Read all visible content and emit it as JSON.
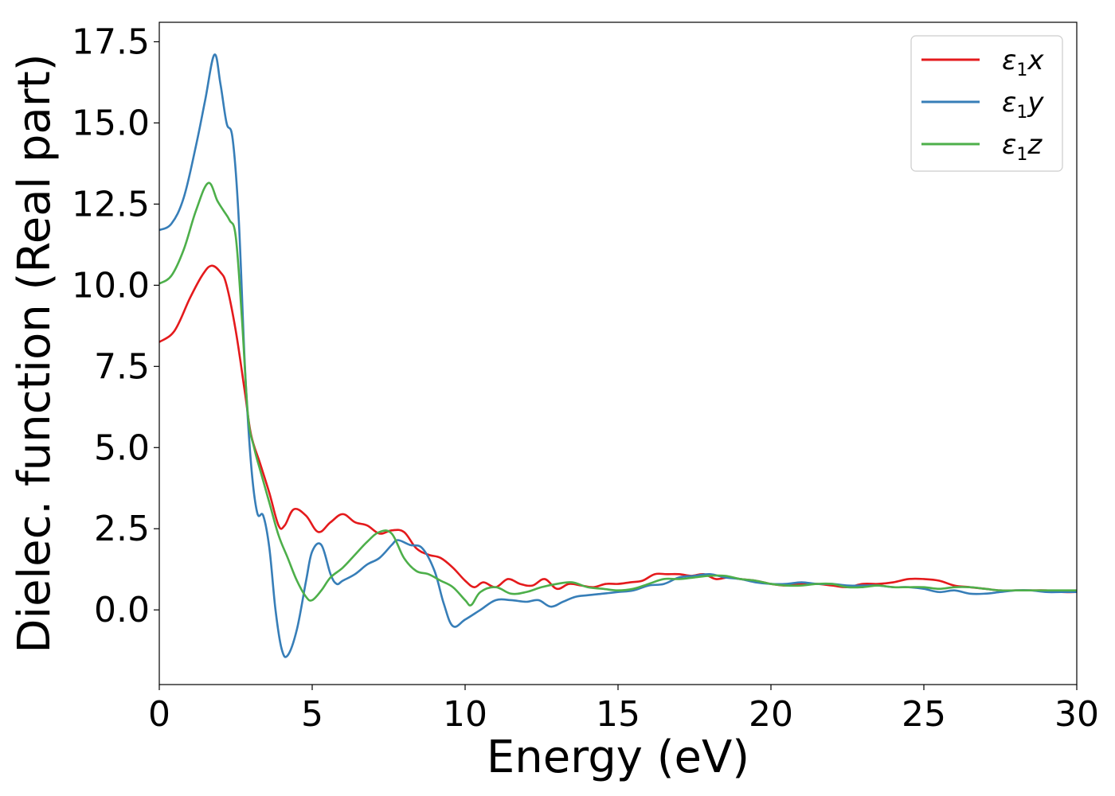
{
  "chart_data": {
    "type": "line",
    "xlabel": "Energy (eV)",
    "ylabel": "Dielec. function (Real part)",
    "xlim": [
      0,
      30
    ],
    "ylim": [
      -2.3,
      18.1
    ],
    "xticks": [
      0,
      5,
      10,
      15,
      20,
      25,
      30
    ],
    "xtick_labels": [
      "0",
      "5",
      "10",
      "15",
      "20",
      "25",
      "30"
    ],
    "yticks": [
      0.0,
      2.5,
      5.0,
      7.5,
      10.0,
      12.5,
      15.0,
      17.5
    ],
    "ytick_labels": [
      "0.0",
      "2.5",
      "5.0",
      "7.5",
      "10.0",
      "12.5",
      "15.0",
      "17.5"
    ],
    "grid": false,
    "legend_position": "top-right",
    "series": [
      {
        "name": "ε1x",
        "legend_main": "ε",
        "legend_sub": "1",
        "legend_var": "x",
        "color": "#e41a1c",
        "x": [
          0,
          0.5,
          1.0,
          1.4,
          1.7,
          2.0,
          2.2,
          2.5,
          2.8,
          3.0,
          3.3,
          3.6,
          3.9,
          4.1,
          4.4,
          4.8,
          5.2,
          5.6,
          6.0,
          6.4,
          6.8,
          7.2,
          7.6,
          8.0,
          8.4,
          8.8,
          9.2,
          9.6,
          10.0,
          10.3,
          10.6,
          11.0,
          11.4,
          11.8,
          12.2,
          12.6,
          13.0,
          13.4,
          13.8,
          14.2,
          14.6,
          15.0,
          15.4,
          15.8,
          16.2,
          16.6,
          17.0,
          17.4,
          17.8,
          18.2,
          18.6,
          19.0,
          19.5,
          20.0,
          20.5,
          21.0,
          21.5,
          22.0,
          22.5,
          23.0,
          23.5,
          24.0,
          24.5,
          25.0,
          25.5,
          26.0,
          26.5,
          27.0,
          27.5,
          28.0,
          28.5,
          29.0,
          29.5,
          30.0
        ],
        "y": [
          8.25,
          8.6,
          9.6,
          10.3,
          10.6,
          10.4,
          10.0,
          8.6,
          6.7,
          5.4,
          4.5,
          3.6,
          2.6,
          2.6,
          3.1,
          2.9,
          2.4,
          2.7,
          2.95,
          2.7,
          2.6,
          2.35,
          2.45,
          2.4,
          1.9,
          1.7,
          1.6,
          1.3,
          0.9,
          0.7,
          0.85,
          0.7,
          0.95,
          0.8,
          0.75,
          0.95,
          0.65,
          0.8,
          0.75,
          0.7,
          0.8,
          0.8,
          0.85,
          0.9,
          1.1,
          1.1,
          1.1,
          1.05,
          1.1,
          0.95,
          1.0,
          0.95,
          0.9,
          0.8,
          0.75,
          0.8,
          0.8,
          0.75,
          0.7,
          0.8,
          0.8,
          0.85,
          0.95,
          0.95,
          0.9,
          0.75,
          0.7,
          0.65,
          0.6,
          0.6,
          0.6,
          0.6,
          0.55,
          0.55
        ]
      },
      {
        "name": "ε1y",
        "legend_main": "ε",
        "legend_sub": "1",
        "legend_var": "y",
        "color": "#377eb8",
        "x": [
          0,
          0.4,
          0.8,
          1.2,
          1.5,
          1.8,
          2.0,
          2.2,
          2.4,
          2.6,
          2.8,
          3.0,
          3.2,
          3.4,
          3.6,
          3.8,
          4.0,
          4.2,
          4.5,
          4.8,
          5.0,
          5.3,
          5.6,
          5.8,
          6.0,
          6.4,
          6.8,
          7.2,
          7.6,
          7.8,
          8.2,
          8.6,
          9.0,
          9.3,
          9.6,
          10.0,
          10.5,
          11.0,
          11.5,
          12.0,
          12.4,
          12.8,
          13.2,
          13.6,
          14.0,
          14.5,
          15.0,
          15.5,
          16.0,
          16.5,
          17.0,
          17.5,
          18.0,
          18.5,
          19.0,
          19.5,
          20.0,
          20.5,
          21.0,
          21.5,
          22.0,
          22.5,
          23.0,
          23.5,
          24.0,
          24.5,
          25.0,
          25.5,
          26.0,
          26.5,
          27.0,
          27.5,
          28.0,
          28.5,
          29.0,
          29.5,
          30.0
        ],
        "y": [
          11.7,
          11.9,
          12.7,
          14.3,
          15.7,
          17.1,
          16.2,
          15.0,
          14.5,
          12.0,
          7.5,
          4.5,
          3.0,
          2.9,
          1.9,
          0.0,
          -1.2,
          -1.4,
          -0.6,
          0.9,
          1.8,
          2.0,
          1.1,
          0.8,
          0.9,
          1.1,
          1.4,
          1.6,
          2.0,
          2.15,
          2.0,
          1.9,
          1.2,
          0.2,
          -0.5,
          -0.3,
          0.0,
          0.3,
          0.3,
          0.25,
          0.3,
          0.1,
          0.25,
          0.4,
          0.45,
          0.5,
          0.55,
          0.6,
          0.75,
          0.8,
          1.0,
          1.05,
          1.1,
          1.0,
          0.95,
          0.85,
          0.8,
          0.8,
          0.85,
          0.8,
          0.8,
          0.75,
          0.75,
          0.75,
          0.7,
          0.7,
          0.65,
          0.55,
          0.6,
          0.5,
          0.5,
          0.55,
          0.6,
          0.6,
          0.55,
          0.55,
          0.55
        ]
      },
      {
        "name": "ε1z",
        "legend_main": "ε",
        "legend_sub": "1",
        "legend_var": "z",
        "color": "#4daf4a",
        "x": [
          0,
          0.4,
          0.8,
          1.2,
          1.6,
          1.9,
          2.1,
          2.3,
          2.5,
          2.7,
          2.9,
          3.1,
          3.3,
          3.6,
          3.9,
          4.2,
          4.5,
          4.8,
          5.0,
          5.3,
          5.6,
          6.0,
          6.4,
          6.8,
          7.2,
          7.6,
          8.0,
          8.4,
          8.8,
          9.2,
          9.6,
          10.0,
          10.2,
          10.5,
          11.0,
          11.5,
          12.0,
          12.5,
          13.0,
          13.5,
          14.0,
          14.5,
          15.0,
          15.5,
          16.0,
          16.5,
          17.0,
          17.5,
          18.0,
          18.5,
          19.0,
          19.5,
          20.0,
          20.5,
          21.0,
          21.5,
          22.0,
          22.5,
          23.0,
          23.5,
          24.0,
          24.5,
          25.0,
          25.5,
          26.0,
          26.5,
          27.0,
          27.5,
          28.0,
          28.5,
          29.0,
          29.5,
          30.0
        ],
        "y": [
          10.05,
          10.3,
          11.1,
          12.3,
          13.15,
          12.6,
          12.3,
          12.0,
          11.5,
          9.0,
          6.0,
          5.0,
          4.3,
          3.3,
          2.3,
          1.6,
          0.9,
          0.4,
          0.3,
          0.6,
          1.0,
          1.3,
          1.7,
          2.1,
          2.4,
          2.35,
          1.6,
          1.2,
          1.1,
          0.9,
          0.7,
          0.3,
          0.15,
          0.55,
          0.7,
          0.5,
          0.55,
          0.7,
          0.8,
          0.85,
          0.7,
          0.65,
          0.6,
          0.65,
          0.8,
          0.95,
          0.95,
          1.0,
          1.05,
          1.05,
          0.95,
          0.9,
          0.8,
          0.75,
          0.75,
          0.8,
          0.8,
          0.7,
          0.7,
          0.75,
          0.7,
          0.7,
          0.7,
          0.65,
          0.7,
          0.7,
          0.65,
          0.6,
          0.6,
          0.6,
          0.6,
          0.6,
          0.6
        ]
      }
    ]
  }
}
